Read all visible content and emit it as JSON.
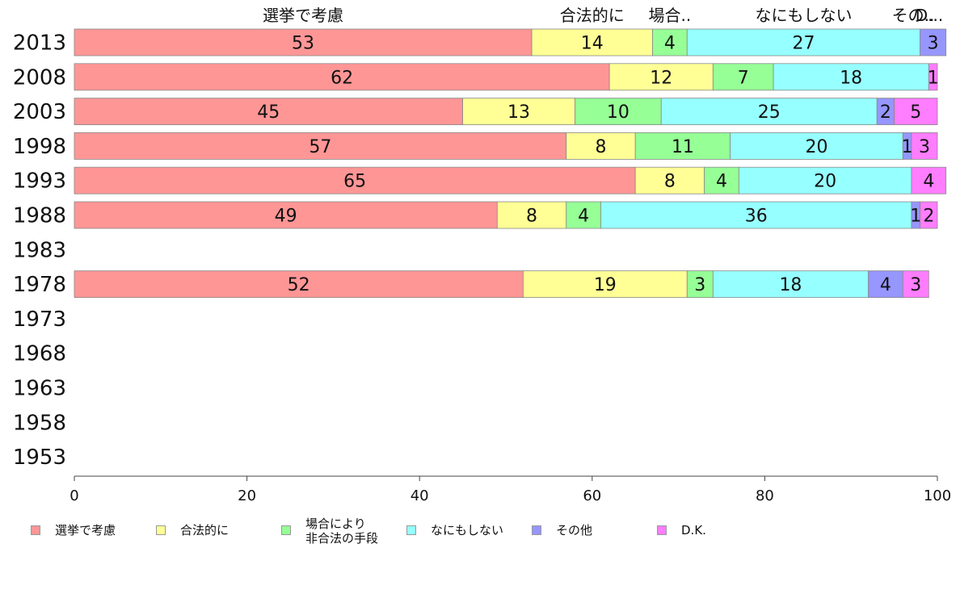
{
  "chart_data": {
    "type": "bar",
    "orientation": "horizontal",
    "stacked": true,
    "categories": [
      "2013",
      "2008",
      "2003",
      "1998",
      "1993",
      "1988",
      "1983",
      "1978",
      "1973",
      "1968",
      "1963",
      "1958",
      "1953"
    ],
    "series": [
      {
        "name": "選挙で考慮",
        "color": "#ff9696",
        "values": [
          53,
          62,
          45,
          57,
          65,
          49,
          null,
          52,
          null,
          null,
          null,
          null,
          null
        ]
      },
      {
        "name": "合法的に",
        "color": "#ffff96",
        "values": [
          14,
          12,
          13,
          8,
          8,
          8,
          null,
          19,
          null,
          null,
          null,
          null,
          null
        ]
      },
      {
        "name": "場合により非合法の手段",
        "label_lines": [
          "場合により",
          "非合法の手段"
        ],
        "color": "#96ff96",
        "values": [
          4,
          7,
          10,
          11,
          4,
          4,
          null,
          3,
          null,
          null,
          null,
          null,
          null
        ]
      },
      {
        "name": "なにもしない",
        "color": "#96ffff",
        "values": [
          27,
          18,
          25,
          20,
          20,
          36,
          null,
          18,
          null,
          null,
          null,
          null,
          null
        ]
      },
      {
        "name": "その他",
        "color": "#9696ff",
        "values": [
          3,
          0,
          2,
          1,
          0,
          1,
          null,
          4,
          null,
          null,
          null,
          null,
          null
        ]
      },
      {
        "name": "D.K.",
        "color": "#ff7dff",
        "values": [
          0,
          1,
          5,
          3,
          4,
          2,
          null,
          3,
          null,
          null,
          null,
          null,
          null
        ]
      }
    ],
    "top_labels": [
      "選挙で考慮",
      "合法的に",
      "場合..",
      "なにもしない",
      "その..",
      "D..."
    ],
    "xlim": [
      0,
      100
    ],
    "xticks": [
      0,
      20,
      40,
      60,
      80,
      100
    ],
    "legend_position": "bottom"
  }
}
